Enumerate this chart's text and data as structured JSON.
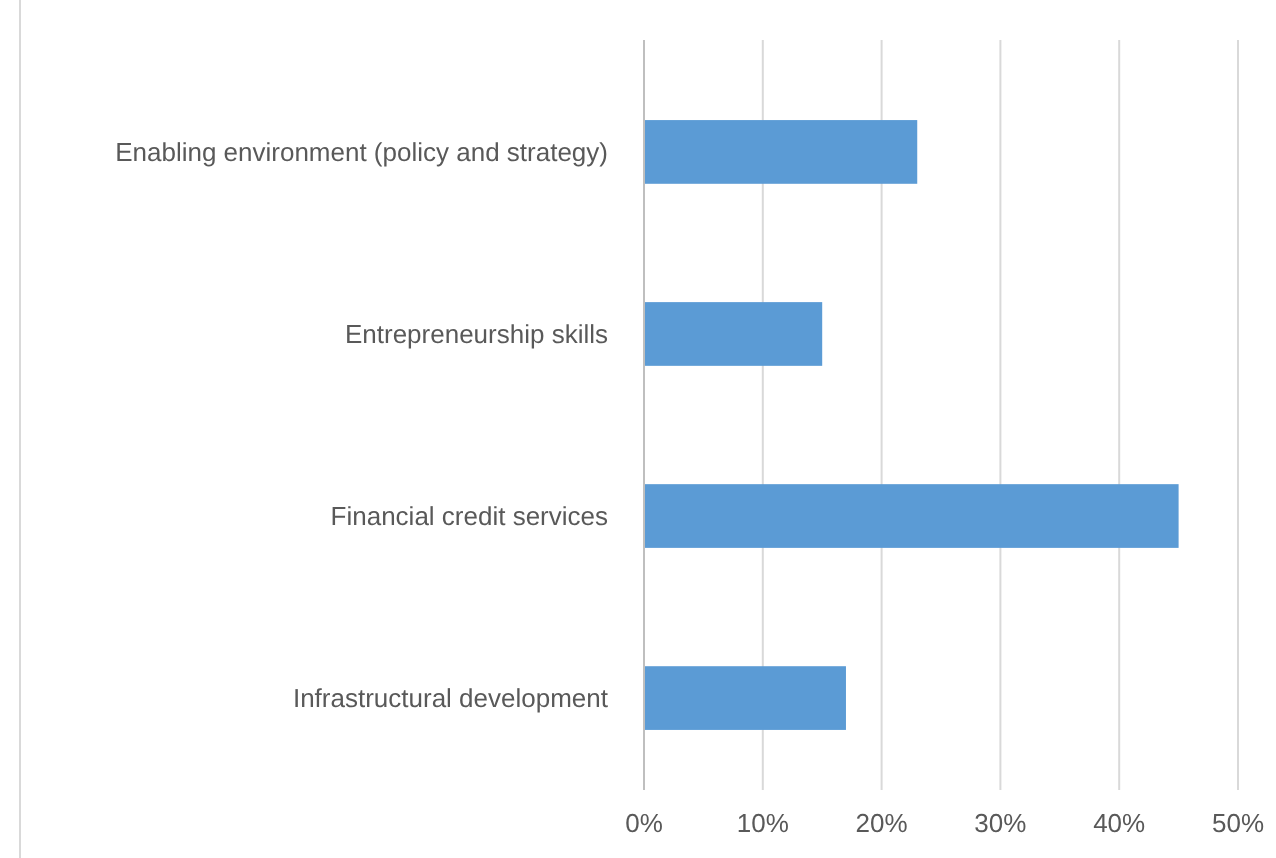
{
  "chart_data": {
    "type": "bar",
    "orientation": "horizontal",
    "categories": [
      "Enabling environment (policy and strategy)",
      "Entrepreneurship skills",
      "Financial credit services",
      "Infrastructural development"
    ],
    "values": [
      23,
      15,
      45,
      17
    ],
    "color": "#5b9bd5",
    "xlim": [
      0,
      50
    ],
    "xticks": [
      {
        "value": 0,
        "label": "0%"
      },
      {
        "value": 10,
        "label": "10%"
      },
      {
        "value": 20,
        "label": "20%"
      },
      {
        "value": 30,
        "label": "30%"
      },
      {
        "value": 40,
        "label": "40%"
      },
      {
        "value": 50,
        "label": "50%"
      }
    ],
    "grid": "x"
  }
}
